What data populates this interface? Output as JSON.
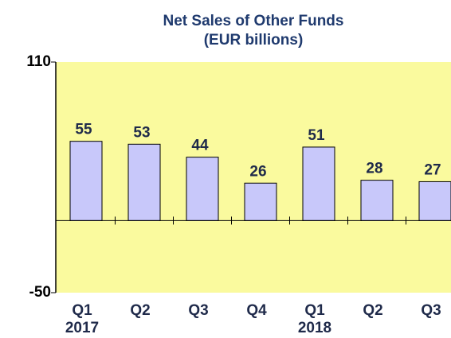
{
  "chart_data": {
    "type": "bar",
    "title": "Net Sales of Other Funds",
    "subtitle": "(EUR billions)",
    "categories": [
      "Q1",
      "Q2",
      "Q3",
      "Q4",
      "Q1",
      "Q2",
      "Q3"
    ],
    "years": [
      "2017",
      null,
      null,
      null,
      "2018",
      null,
      null
    ],
    "values": [
      55,
      53,
      44,
      26,
      51,
      28,
      27
    ],
    "color": "#c8c8fa",
    "ylim": [
      -50,
      110
    ],
    "yticks": [
      -50,
      110
    ],
    "grid": false
  }
}
